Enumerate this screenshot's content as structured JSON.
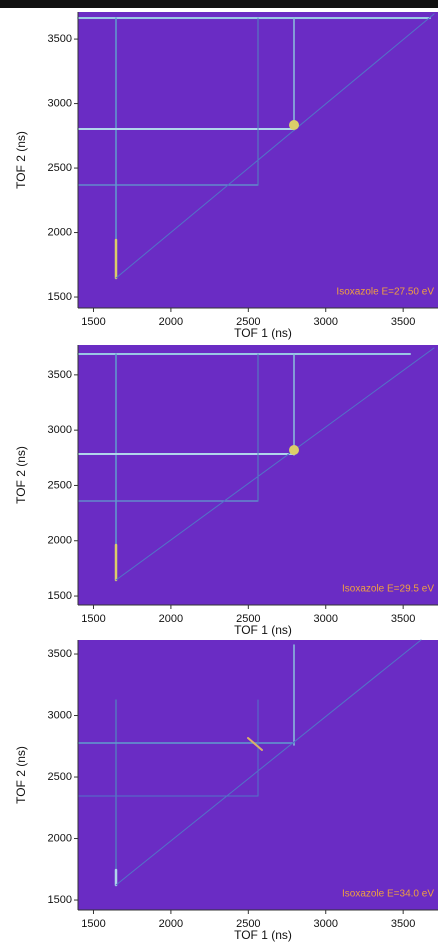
{
  "chart_data": [
    {
      "type": "heatmap",
      "xlabel": "TOF 1 (ns)",
      "ylabel": "TOF 2 (ns)",
      "annotation": "Isoxazole E=27.50 eV",
      "color": "#6a2cc4",
      "annotation_color": "#f0a040",
      "xlim": [
        1400,
        3725
      ],
      "ylim": [
        1415,
        3710
      ],
      "xticks": [
        1500,
        2000,
        2500,
        3000,
        3500
      ],
      "yticks": [
        1500,
        2000,
        2500,
        3000,
        3500
      ]
    },
    {
      "type": "heatmap",
      "xlabel": "TOF 1 (ns)",
      "ylabel": "TOF 2 (ns)",
      "annotation": "Isoxazole E=29.5 eV",
      "color": "#6a2cc4",
      "annotation_color": "#f0a040",
      "xlim": [
        1400,
        3725
      ],
      "ylim": [
        1419,
        3770
      ],
      "xticks": [
        1500,
        2000,
        2500,
        3000,
        3500
      ],
      "yticks": [
        1500,
        2000,
        2500,
        3000,
        3500
      ]
    },
    {
      "type": "heatmap",
      "xlabel": "TOF 1 (ns)",
      "ylabel": "TOF 2 (ns)",
      "annotation": "Isoxazole E=34.0 eV",
      "color": "#6a2cc4",
      "annotation_color": "#f0a040",
      "xlim": [
        1400,
        3725
      ],
      "ylim": [
        1419,
        3614
      ],
      "xticks": [
        1500,
        2000,
        2500,
        3000,
        3500
      ],
      "yticks": [
        1500,
        2000,
        2500,
        3000,
        3500
      ]
    }
  ]
}
